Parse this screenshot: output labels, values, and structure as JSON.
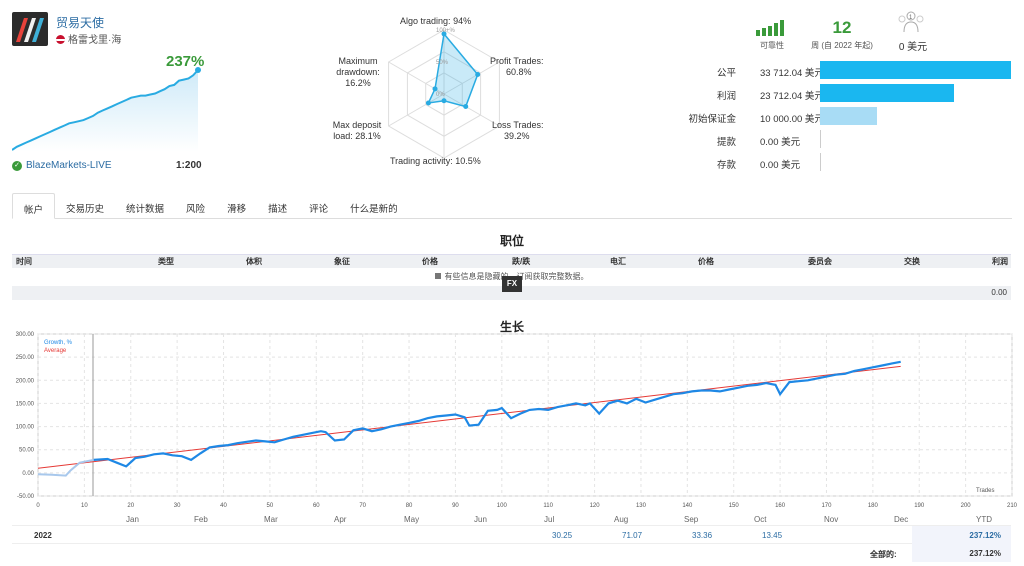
{
  "signal": {
    "name": "贸易天使",
    "location": "格雷戈里·海",
    "growth": "237%",
    "broker": "BlazeMarkets-LIVE",
    "leverage": "1:200",
    "sparkline": [
      5,
      8,
      10,
      12,
      14,
      16,
      18,
      20,
      22,
      24,
      26,
      28,
      30,
      31,
      32,
      33,
      35,
      37,
      40,
      42,
      44,
      46,
      48,
      50,
      52,
      54,
      55,
      56,
      56,
      57,
      58,
      60,
      62,
      65,
      66,
      70,
      71,
      72,
      75,
      80
    ]
  },
  "radar": {
    "labels": [
      {
        "name": "Algo trading:",
        "value": "94%"
      },
      {
        "name": "Profit Trades:",
        "value": "60.8%"
      },
      {
        "name": "Loss Trades:",
        "value": "39.2%"
      },
      {
        "name": "Trading activity:",
        "value": "10.5%"
      },
      {
        "name": "Max deposit load:",
        "value": "28.1%"
      },
      {
        "name": "Maximum drawdown:",
        "value": "16.2%"
      }
    ],
    "values": [
      94,
      60.8,
      39.2,
      10.5,
      28.1,
      16.2
    ],
    "rings": [
      "100+%",
      "50%",
      "0%"
    ]
  },
  "stats": {
    "reliability_label": "可靠性",
    "weeks_value": "12",
    "weeks_label": "周 (自 2022 年起)",
    "subscribers_value": "0 美元",
    "subscribers_count": "1"
  },
  "balance_bars": [
    {
      "label": "公平",
      "value": "33 712.04 美元",
      "amount": 33712.04,
      "color": "#1ab7f0"
    },
    {
      "label": "利润",
      "value": "23 712.04 美元",
      "amount": 23712.04,
      "color": "#1ab7f0"
    },
    {
      "label": "初始保证金",
      "value": "10 000.00 美元",
      "amount": 10000,
      "color": "#a8dcf5"
    },
    {
      "label": "提款",
      "value": "0.00 美元",
      "amount": 0,
      "color": "#a8dcf5"
    },
    {
      "label": "存款",
      "value": "0.00 美元",
      "amount": 0,
      "color": "#a8dcf5"
    }
  ],
  "tabs": [
    "帐户",
    "交易历史",
    "统计数据",
    "风险",
    "滑移",
    "描述",
    "评论",
    "什么是新的"
  ],
  "positions": {
    "title": "职位",
    "columns": [
      "时间",
      "类型",
      "体积",
      "象征",
      "价格",
      "跌/跌",
      "电汇",
      "价格",
      "委员会",
      "交换",
      "利润"
    ],
    "note": "有些信息是隐藏的。订阅获取完整数据。",
    "note_link": "订阅",
    "total": "0.00",
    "badge": "FX"
  },
  "growth": {
    "title": "生长",
    "legend_growth": "Growth, %",
    "legend_average": "Average",
    "xlabel": "Trades",
    "months": [
      "Jan",
      "Feb",
      "Mar",
      "Apr",
      "May",
      "Jun",
      "Jul",
      "Aug",
      "Sep",
      "Oct",
      "Nov",
      "Dec",
      "YTD"
    ],
    "year": "2022",
    "month_values": [
      "",
      "",
      "",
      "",
      "",
      "",
      "30.25",
      "71.07",
      "33.36",
      "13.45",
      "",
      ""
    ],
    "ytd": "237.12%",
    "total_label": "全部的:",
    "total_value": "237.12%"
  },
  "chart_data": {
    "type": "line",
    "title": "生长",
    "xlabel": "Trades",
    "ylabel": "",
    "xlim": [
      0,
      210
    ],
    "ylim": [
      -50,
      300
    ],
    "x_ticks": [
      0,
      10,
      20,
      30,
      40,
      50,
      60,
      70,
      80,
      90,
      100,
      110,
      120,
      130,
      140,
      150,
      160,
      170,
      180,
      190,
      200,
      210
    ],
    "y_ticks": [
      "-50.00",
      "0.00",
      "50.00",
      "100.00",
      "150.00",
      "200.00",
      "250.00",
      "300.00"
    ],
    "series": [
      {
        "name": "Growth, %",
        "color": "#1e88e5",
        "x": [
          0,
          3,
          6,
          7,
          9,
          12,
          15,
          17,
          19,
          21,
          23,
          25,
          27,
          29,
          31,
          33,
          35,
          37,
          39,
          41,
          43,
          45,
          47,
          49,
          51,
          53,
          55,
          57,
          59,
          61,
          62,
          64,
          66,
          68,
          70,
          72,
          74,
          76,
          78,
          80,
          82,
          84,
          86,
          88,
          90,
          92,
          93,
          95,
          97,
          99,
          100,
          102,
          104,
          106,
          108,
          110,
          112,
          114,
          116,
          118,
          119,
          121,
          123,
          125,
          127,
          129,
          131,
          133,
          135,
          137,
          139,
          141,
          143,
          145,
          147,
          149,
          151,
          153,
          155,
          157,
          159,
          160,
          162,
          164,
          166,
          168,
          170,
          172,
          174,
          176,
          178,
          180,
          182,
          184,
          186
        ],
        "y": [
          -3,
          -4,
          -6,
          5,
          22,
          28,
          30,
          22,
          14,
          32,
          35,
          40,
          42,
          38,
          36,
          28,
          42,
          55,
          58,
          60,
          64,
          67,
          70,
          68,
          66,
          72,
          78,
          82,
          86,
          90,
          88,
          70,
          72,
          92,
          96,
          90,
          94,
          100,
          104,
          108,
          112,
          118,
          122,
          124,
          126,
          120,
          102,
          104,
          134,
          136,
          140,
          118,
          128,
          136,
          138,
          136,
          142,
          146,
          150,
          146,
          150,
          128,
          150,
          156,
          150,
          160,
          152,
          158,
          164,
          170,
          172,
          176,
          178,
          178,
          176,
          180,
          184,
          188,
          190,
          194,
          190,
          170,
          196,
          198,
          200,
          204,
          208,
          212,
          214,
          220,
          224,
          228,
          232,
          236,
          240
        ]
      },
      {
        "name": "Average",
        "color": "#e53935",
        "x": [
          0,
          186
        ],
        "y": [
          10,
          230
        ]
      }
    ]
  }
}
